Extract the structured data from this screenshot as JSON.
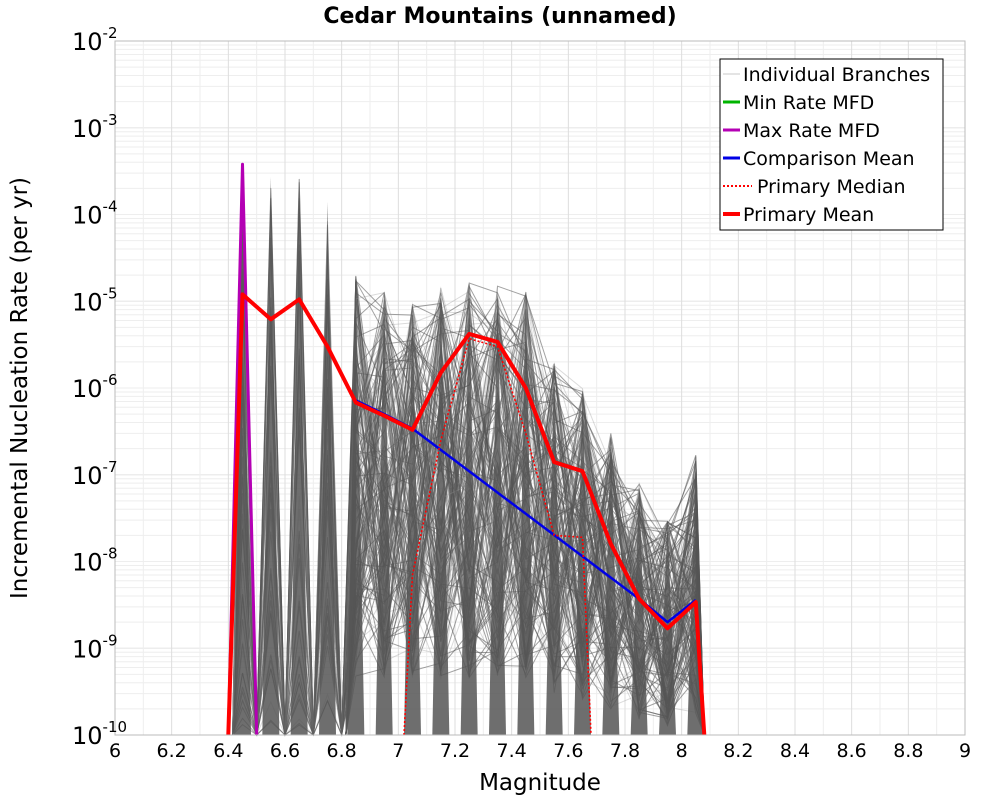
{
  "chart_data": {
    "type": "line",
    "title": "Cedar Mountains (unnamed)",
    "xlabel": "Magnitude",
    "ylabel": "Incremental Nucleation Rate (per yr)",
    "xlim": [
      6,
      9
    ],
    "ylim_log10": [
      -10,
      -2
    ],
    "yscale": "log",
    "grid": true,
    "legend_position": "top-right",
    "x_ticks": [
      "6",
      "6.2",
      "6.4",
      "6.6",
      "6.8",
      "7",
      "7.2",
      "7.4",
      "7.6",
      "7.8",
      "8",
      "8.2",
      "8.4",
      "8.6",
      "8.8",
      "9"
    ],
    "y_ticks": [
      {
        "base": "10",
        "exp": "-2"
      },
      {
        "base": "10",
        "exp": "-3"
      },
      {
        "base": "10",
        "exp": "-4"
      },
      {
        "base": "10",
        "exp": "-5"
      },
      {
        "base": "10",
        "exp": "-6"
      },
      {
        "base": "10",
        "exp": "-7"
      },
      {
        "base": "10",
        "exp": "-8"
      },
      {
        "base": "10",
        "exp": "-9"
      },
      {
        "base": "10",
        "exp": "-10"
      }
    ],
    "legend": [
      {
        "label": "Individual Branches",
        "color": "#c8c8c8",
        "style": "thin"
      },
      {
        "label": "Min Rate MFD",
        "color": "#00b400",
        "style": "solid"
      },
      {
        "label": "Max Rate MFD",
        "color": "#b400b4",
        "style": "solid"
      },
      {
        "label": "Comparison Mean",
        "color": "#0000e6",
        "style": "solid"
      },
      {
        "label": "Primary Median",
        "color": "#ff0000",
        "style": "dotted"
      },
      {
        "label": "Primary Mean",
        "color": "#ff0000",
        "style": "thick"
      }
    ],
    "series": [
      {
        "name": "Primary Mean",
        "color": "#ff0000",
        "points": [
          [
            6.4,
            1e-10
          ],
          [
            6.45,
            1.2e-05
          ],
          [
            6.55,
            6.2e-06
          ],
          [
            6.65,
            1.05e-05
          ],
          [
            6.75,
            3e-06
          ],
          [
            6.85,
            6.8e-07
          ],
          [
            6.95,
            4.8e-07
          ],
          [
            7.05,
            3.3e-07
          ],
          [
            7.15,
            1.5e-06
          ],
          [
            7.25,
            4.2e-06
          ],
          [
            7.35,
            3.4e-06
          ],
          [
            7.45,
            1e-06
          ],
          [
            7.55,
            1.4e-07
          ],
          [
            7.65,
            1.1e-07
          ],
          [
            7.75,
            1.6e-08
          ],
          [
            7.85,
            3.7e-09
          ],
          [
            7.95,
            1.7e-09
          ],
          [
            8.05,
            3.4e-09
          ],
          [
            8.08,
            1e-10
          ]
        ]
      },
      {
        "name": "Comparison Mean",
        "color": "#0000e6",
        "points": [
          [
            6.85,
            7.2e-07
          ],
          [
            6.95,
            5e-07
          ],
          [
            7.05,
            3.4e-07
          ],
          [
            7.85,
            3.7e-09
          ],
          [
            7.95,
            2e-09
          ],
          [
            8.05,
            3.6e-09
          ]
        ]
      },
      {
        "name": "Primary Median",
        "color": "#ff0000",
        "points": [
          [
            7.02,
            1e-10
          ],
          [
            7.05,
            7e-09
          ],
          [
            7.15,
            2.5e-07
          ],
          [
            7.25,
            3.7e-06
          ],
          [
            7.35,
            3e-06
          ],
          [
            7.45,
            3e-07
          ],
          [
            7.55,
            2e-08
          ],
          [
            7.65,
            1.9e-08
          ],
          [
            7.68,
            1e-10
          ]
        ]
      },
      {
        "name": "Max Rate MFD",
        "color": "#b400b4",
        "points": [
          [
            6.4,
            1e-10
          ],
          [
            6.45,
            0.00038
          ],
          [
            6.5,
            1e-10
          ]
        ]
      }
    ],
    "branch_envelope": [
      {
        "x": 6.45,
        "max": 0.0004
      },
      {
        "x": 6.55,
        "max": 0.00027
      },
      {
        "x": 6.65,
        "max": 0.00027
      },
      {
        "x": 6.75,
        "max": 0.00014
      },
      {
        "x": 6.85,
        "max": 2e-05
      },
      {
        "x": 6.95,
        "max": 1.3e-05
      },
      {
        "x": 7.05,
        "max": 1e-05
      },
      {
        "x": 7.15,
        "max": 1.5e-05
      },
      {
        "x": 7.25,
        "max": 1.7e-05
      },
      {
        "x": 7.35,
        "max": 1.5e-05
      },
      {
        "x": 7.45,
        "max": 1.3e-05
      },
      {
        "x": 7.55,
        "max": 2e-06
      },
      {
        "x": 7.65,
        "max": 1e-06
      },
      {
        "x": 7.75,
        "max": 3e-07
      },
      {
        "x": 7.85,
        "max": 8e-08
      },
      {
        "x": 7.95,
        "max": 3e-08
      },
      {
        "x": 8.05,
        "max": 1.7e-07
      }
    ]
  }
}
